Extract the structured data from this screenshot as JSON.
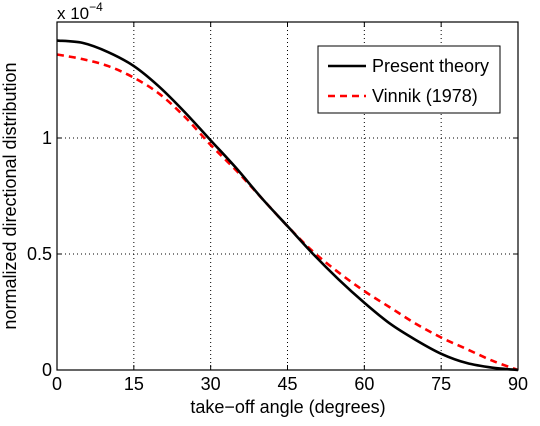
{
  "chart_data": {
    "type": "line",
    "title": "",
    "xlabel": "take−off angle (degrees)",
    "ylabel": "normalized directional distribution",
    "y_multiplier": {
      "base": "x 10",
      "exponent": "−4"
    },
    "xlim": [
      0,
      90
    ],
    "ylim": [
      0,
      1.5
    ],
    "x_ticks": [
      0,
      15,
      30,
      45,
      60,
      75,
      90
    ],
    "x_tick_labels": [
      "0",
      "15",
      "30",
      "45",
      "60",
      "75",
      "90"
    ],
    "y_ticks": [
      0,
      0.5,
      1
    ],
    "y_tick_labels": [
      "0",
      "0.5",
      "1"
    ],
    "grid": true,
    "legend_position": "top-right",
    "series": [
      {
        "name": "Present theory",
        "color": "#000000",
        "style": "solid",
        "x": [
          0,
          5,
          10,
          15,
          20,
          25,
          30,
          35,
          40,
          45,
          50,
          55,
          60,
          65,
          70,
          75,
          80,
          85,
          90
        ],
        "y": [
          1.42,
          1.41,
          1.37,
          1.31,
          1.22,
          1.11,
          0.99,
          0.87,
          0.74,
          0.62,
          0.5,
          0.39,
          0.29,
          0.2,
          0.13,
          0.07,
          0.03,
          0.01,
          0.0
        ]
      },
      {
        "name": "Vinnik (1978)",
        "color": "#ff0000",
        "style": "dashed",
        "x": [
          0,
          5,
          10,
          15,
          20,
          25,
          30,
          35,
          40,
          45,
          50,
          55,
          60,
          65,
          70,
          75,
          80,
          85,
          90
        ],
        "y": [
          1.36,
          1.34,
          1.31,
          1.26,
          1.19,
          1.09,
          0.97,
          0.86,
          0.74,
          0.62,
          0.51,
          0.42,
          0.34,
          0.27,
          0.2,
          0.14,
          0.09,
          0.04,
          0.0
        ]
      }
    ]
  }
}
